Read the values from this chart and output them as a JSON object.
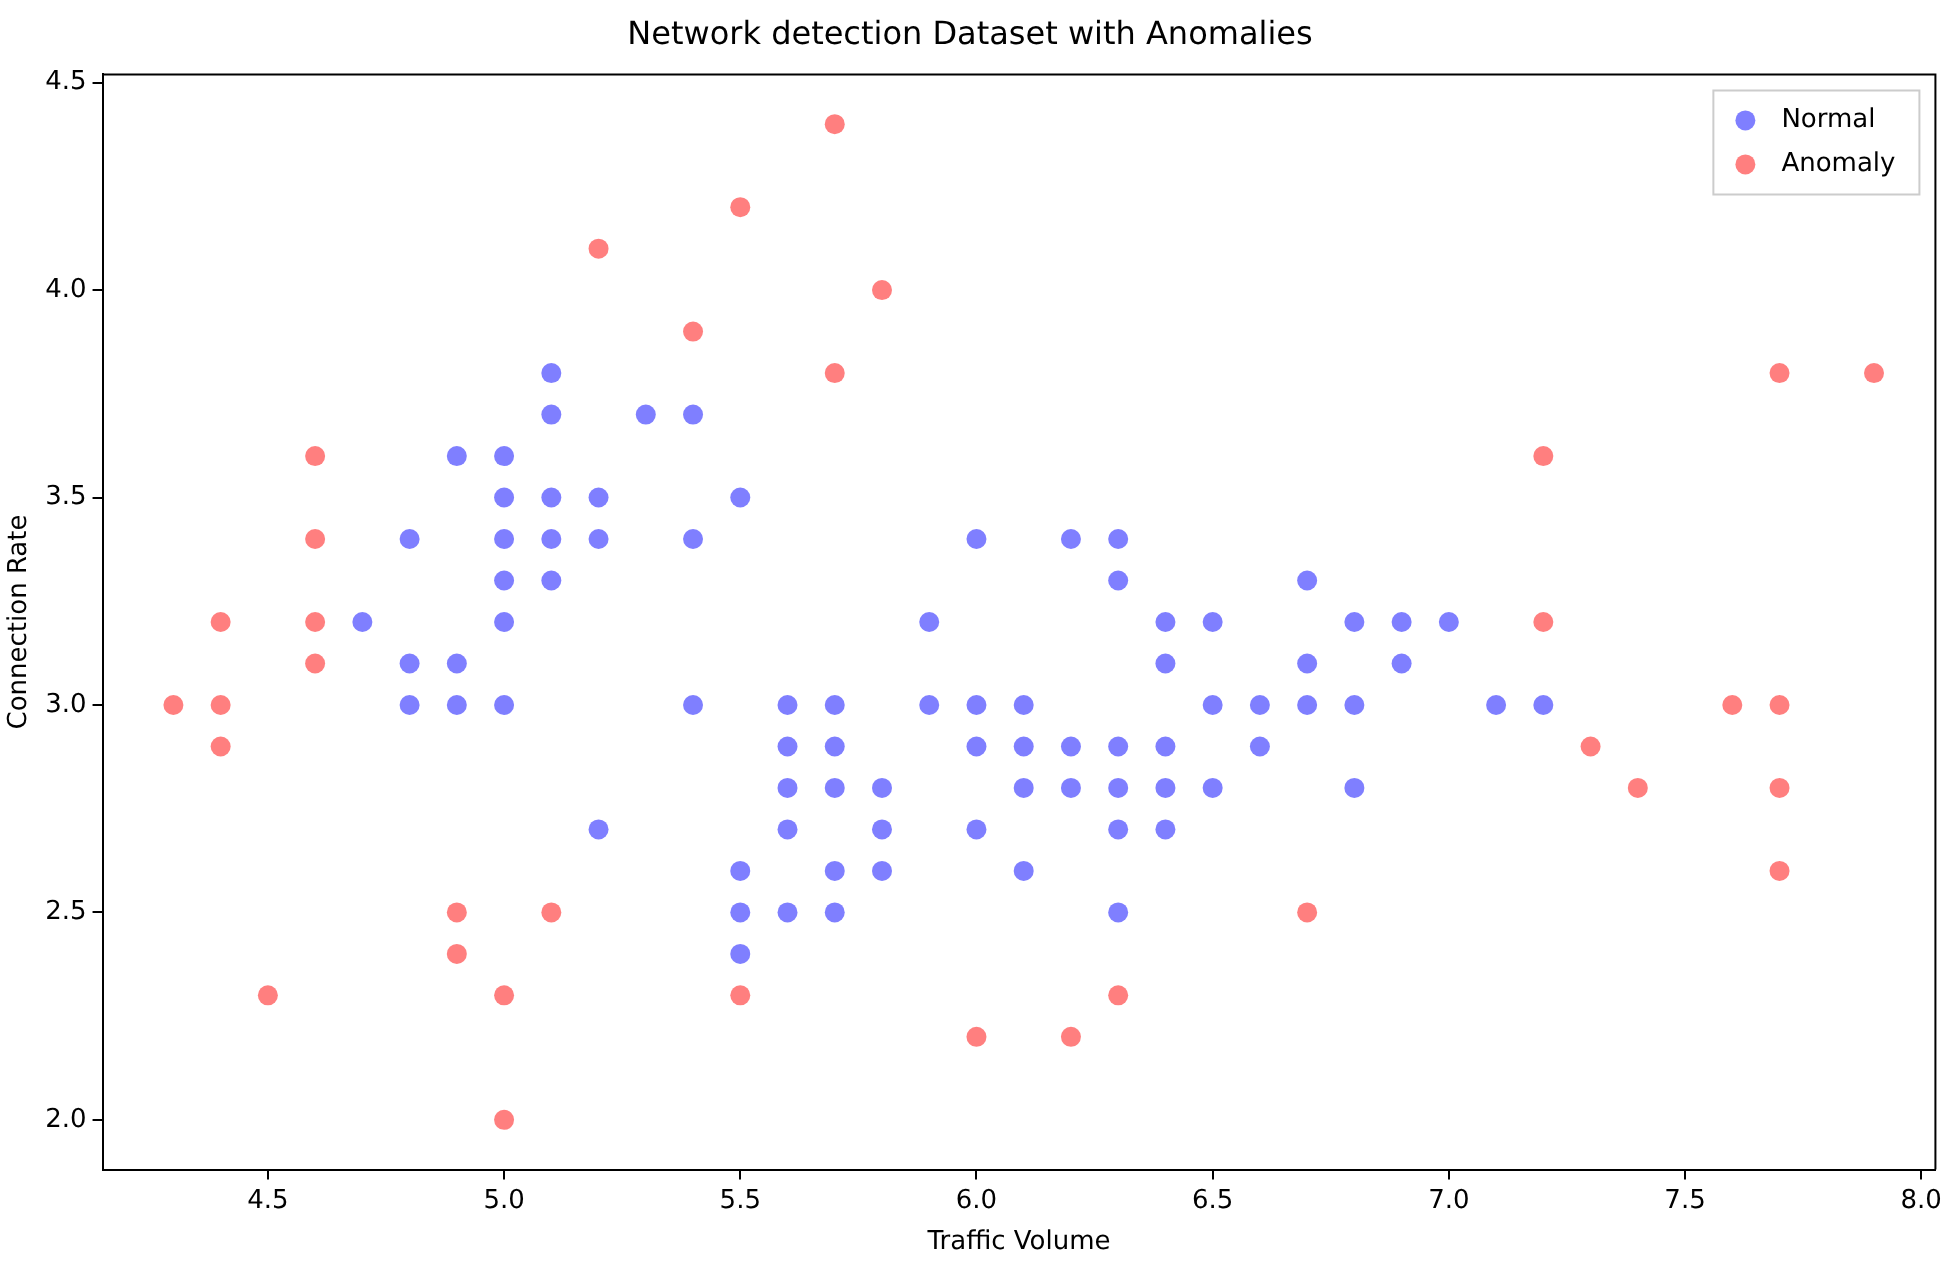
{
  "chart_data": {
    "type": "scatter",
    "title": "Network detection Dataset with Anomalies",
    "xlabel": "Traffic Volume",
    "ylabel": "Connection Rate",
    "xlim": [
      4.15,
      8.03
    ],
    "ylim": [
      1.88,
      4.52
    ],
    "xticks": [
      4.5,
      {
        "value": 5,
        "label": "5.0"
      },
      5.5,
      {
        "value": 6,
        "label": "6.0"
      },
      6.5,
      {
        "value": 7,
        "label": "7.0"
      },
      7.5,
      {
        "value": 8,
        "label": "8.0"
      }
    ],
    "yticks": [
      {
        "value": 2,
        "label": "2.0"
      },
      2.5,
      {
        "value": 3,
        "label": "3.0"
      },
      3.5,
      {
        "value": 4,
        "label": "4.0"
      },
      4.5
    ],
    "grid": false,
    "legend": "top right",
    "marker": "circle",
    "series": [
      {
        "name": "Normal",
        "color": "#0000ff",
        "x": [
          4.7,
          4.8,
          4.8,
          4.8,
          4.9,
          4.9,
          4.9,
          5.0,
          5.0,
          5.0,
          5.0,
          5.0,
          5.0,
          5.1,
          5.1,
          5.1,
          5.1,
          5.1,
          5.2,
          5.2,
          5.2,
          5.3,
          5.4,
          5.4,
          5.4,
          5.5,
          5.5,
          5.5,
          5.5,
          5.6,
          5.6,
          5.6,
          5.6,
          5.6,
          5.7,
          5.7,
          5.7,
          5.7,
          5.7,
          5.8,
          5.8,
          5.8,
          5.9,
          5.9,
          6.0,
          6.0,
          6.0,
          6.0,
          6.1,
          6.1,
          6.1,
          6.1,
          6.2,
          6.2,
          6.2,
          6.3,
          6.3,
          6.3,
          6.3,
          6.3,
          6.3,
          6.4,
          6.4,
          6.4,
          6.4,
          6.4,
          6.5,
          6.5,
          6.5,
          6.6,
          6.6,
          6.7,
          6.7,
          6.7,
          6.8,
          6.8,
          6.8,
          6.9,
          6.9,
          7.0,
          7.1,
          7.2
        ],
        "values": [
          3.2,
          3.4,
          3.1,
          3.0,
          3.6,
          3.1,
          3.0,
          3.6,
          3.5,
          3.4,
          3.3,
          3.2,
          3.0,
          3.8,
          3.7,
          3.5,
          3.4,
          3.3,
          3.5,
          3.4,
          2.7,
          3.7,
          3.7,
          3.4,
          3.0,
          3.5,
          2.6,
          2.5,
          2.4,
          3.0,
          2.9,
          2.8,
          2.7,
          2.5,
          3.0,
          2.9,
          2.8,
          2.6,
          2.5,
          2.8,
          2.7,
          2.6,
          3.2,
          3.0,
          3.4,
          3.0,
          2.9,
          2.7,
          3.0,
          2.9,
          2.8,
          2.6,
          3.4,
          2.9,
          2.8,
          3.4,
          3.3,
          2.9,
          2.8,
          2.7,
          2.5,
          3.2,
          3.1,
          2.9,
          2.8,
          2.7,
          3.2,
          3.0,
          2.8,
          3.0,
          2.9,
          3.3,
          3.1,
          3.0,
          3.2,
          3.0,
          2.8,
          3.2,
          3.1,
          3.2,
          3.0,
          3.0
        ]
      },
      {
        "name": "Anomaly",
        "color": "#ff0000",
        "x": [
          4.3,
          4.4,
          4.4,
          4.4,
          4.5,
          4.6,
          4.6,
          4.6,
          4.6,
          4.9,
          4.9,
          5.0,
          5.0,
          5.1,
          5.2,
          5.4,
          5.5,
          5.5,
          5.7,
          5.7,
          5.8,
          6.0,
          6.2,
          6.3,
          6.7,
          7.2,
          7.2,
          7.3,
          7.4,
          7.6,
          7.7,
          7.7,
          7.7,
          7.7,
          7.9
        ],
        "values": [
          3.0,
          3.2,
          3.0,
          2.9,
          2.3,
          3.6,
          3.4,
          3.2,
          3.1,
          2.5,
          2.4,
          2.3,
          2.0,
          2.5,
          4.1,
          3.9,
          4.2,
          2.3,
          4.4,
          3.8,
          4.0,
          2.2,
          2.2,
          2.3,
          2.5,
          3.6,
          3.2,
          2.9,
          2.8,
          3.0,
          3.8,
          3.0,
          2.8,
          2.6,
          3.8
        ]
      }
    ]
  }
}
